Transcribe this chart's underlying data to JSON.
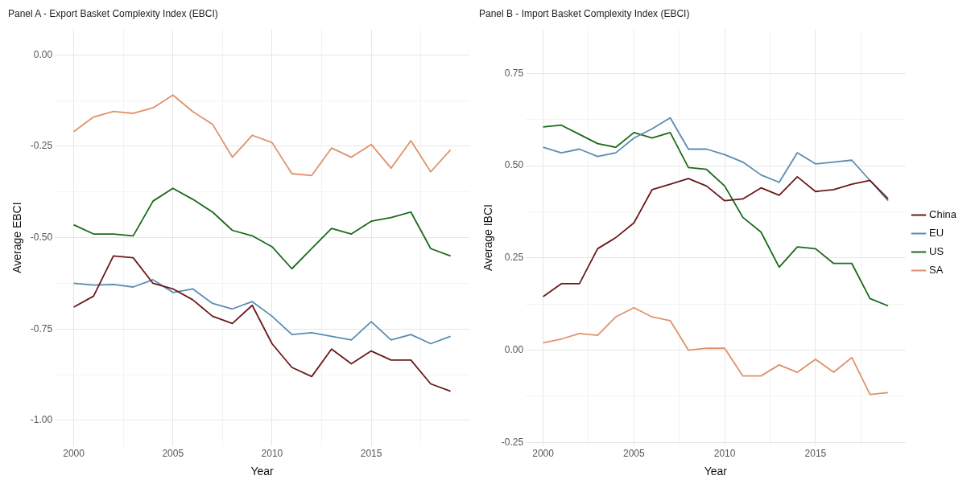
{
  "chart_data": [
    {
      "type": "line",
      "title": "Panel A - Export Basket Complexity Index (EBCI)",
      "xlabel": "Year",
      "ylabel": "Average EBCI",
      "x": [
        2000,
        2001,
        2002,
        2003,
        2004,
        2005,
        2006,
        2007,
        2008,
        2009,
        2010,
        2011,
        2012,
        2013,
        2014,
        2015,
        2016,
        2017,
        2018,
        2019
      ],
      "series": [
        {
          "color": "#6b1a1a",
          "values": [
            -0.69,
            -0.66,
            -0.55,
            -0.555,
            -0.625,
            -0.64,
            -0.67,
            -0.715,
            -0.735,
            -0.685,
            -0.79,
            -0.855,
            -0.88,
            -0.805,
            -0.845,
            -0.81,
            -0.835,
            -0.835,
            -0.9,
            -0.92
          ]
        },
        {
          "color": "#5b8db0",
          "values": [
            -0.625,
            -0.63,
            -0.628,
            -0.635,
            -0.615,
            -0.65,
            -0.64,
            -0.68,
            -0.695,
            -0.675,
            -0.715,
            -0.765,
            -0.76,
            -0.77,
            -0.78,
            -0.73,
            -0.78,
            -0.765,
            -0.79,
            -0.77
          ]
        },
        {
          "color": "#1a6b1a",
          "values": [
            -0.465,
            -0.49,
            -0.49,
            -0.495,
            -0.4,
            -0.365,
            -0.395,
            -0.43,
            -0.48,
            -0.495,
            -0.525,
            -0.585,
            -0.53,
            -0.475,
            -0.49,
            -0.455,
            -0.445,
            -0.43,
            -0.53,
            -0.55
          ]
        },
        {
          "color": "#e0926a",
          "values": [
            -0.21,
            -0.17,
            -0.155,
            -0.16,
            -0.145,
            -0.11,
            -0.155,
            -0.19,
            -0.28,
            -0.22,
            -0.24,
            -0.325,
            -0.33,
            -0.255,
            -0.28,
            -0.245,
            -0.31,
            -0.235,
            -0.32,
            -0.26
          ]
        }
      ],
      "xlim": [
        1999.05,
        2019.95
      ],
      "xticks": [
        2000,
        {
          "value": 2002.5,
          "label": null
        },
        2005,
        {
          "value": 2007.5,
          "label": null
        },
        2010,
        {
          "value": 2012.5,
          "label": null
        },
        2015,
        {
          "value": 2017.5,
          "label": null
        }
      ],
      "ylim": [
        -1.07,
        0.07
      ],
      "yticks": [
        {
          "value": -1,
          "label": "-1.00"
        },
        {
          "value": -0.875,
          "label": null
        },
        {
          "value": -0.75,
          "label": "-0.75"
        },
        {
          "value": -0.625,
          "label": null
        },
        {
          "value": -0.5,
          "label": "-0.50"
        },
        {
          "value": -0.375,
          "label": null
        },
        {
          "value": -0.25,
          "label": "-0.25"
        },
        {
          "value": -0.125,
          "label": null
        },
        {
          "value": 0,
          "label": "0.00"
        }
      ],
      "grid": true,
      "legend": false,
      "marker": "none",
      "line_style": "solid"
    },
    {
      "type": "line",
      "title": "Panel B - Import Basket Complexity Index (EBCI)",
      "xlabel": "Year",
      "ylabel": "Average IBCI",
      "x": [
        2000,
        2001,
        2002,
        2003,
        2004,
        2005,
        2006,
        2007,
        2008,
        2009,
        2010,
        2011,
        2012,
        2013,
        2014,
        2015,
        2016,
        2017,
        2018,
        2019
      ],
      "series": [
        {
          "name": "China",
          "color": "#6b1a1a",
          "values": [
            0.145,
            0.18,
            0.18,
            0.275,
            0.305,
            0.345,
            0.435,
            0.45,
            0.465,
            0.445,
            0.405,
            0.41,
            0.44,
            0.42,
            0.47,
            0.43,
            0.435,
            0.45,
            0.46,
            0.41
          ]
        },
        {
          "name": "EU",
          "color": "#5b8db0",
          "values": [
            0.55,
            0.535,
            0.545,
            0.525,
            0.535,
            0.575,
            0.6,
            0.63,
            0.545,
            0.545,
            0.53,
            0.51,
            0.475,
            0.455,
            0.535,
            0.505,
            0.51,
            0.515,
            0.46,
            0.405
          ]
        },
        {
          "name": "US",
          "color": "#1a6b1a",
          "values": [
            0.605,
            0.61,
            0.585,
            0.56,
            0.55,
            0.59,
            0.575,
            0.59,
            0.495,
            0.49,
            0.445,
            0.36,
            0.32,
            0.225,
            0.28,
            0.275,
            0.235,
            0.235,
            0.14,
            0.12
          ]
        },
        {
          "name": "SA",
          "color": "#e0926a",
          "values": [
            0.02,
            0.03,
            0.045,
            0.04,
            0.09,
            0.115,
            0.09,
            0.08,
            0.0,
            0.005,
            0.005,
            -0.07,
            -0.07,
            -0.04,
            -0.06,
            -0.025,
            -0.06,
            -0.02,
            -0.12,
            -0.115
          ]
        }
      ],
      "xlim": [
        1999.05,
        2019.95
      ],
      "xticks": [
        2000,
        {
          "value": 2002.5,
          "label": null
        },
        2005,
        {
          "value": 2007.5,
          "label": null
        },
        2010,
        {
          "value": 2012.5,
          "label": null
        },
        2015,
        {
          "value": 2017.5,
          "label": null
        }
      ],
      "ylim": [
        -0.26,
        0.87
      ],
      "yticks": [
        {
          "value": -0.25,
          "label": "-0.25"
        },
        {
          "value": -0.125,
          "label": null
        },
        {
          "value": 0,
          "label": "0.00"
        },
        {
          "value": 0.125,
          "label": null
        },
        {
          "value": 0.25,
          "label": "0.25"
        },
        {
          "value": 0.375,
          "label": null
        },
        {
          "value": 0.5,
          "label": "0.50"
        },
        {
          "value": 0.625,
          "label": null
        },
        {
          "value": 0.75,
          "label": "0.75"
        }
      ],
      "grid": true,
      "legend": "right",
      "marker": "none",
      "line_style": "solid"
    }
  ]
}
